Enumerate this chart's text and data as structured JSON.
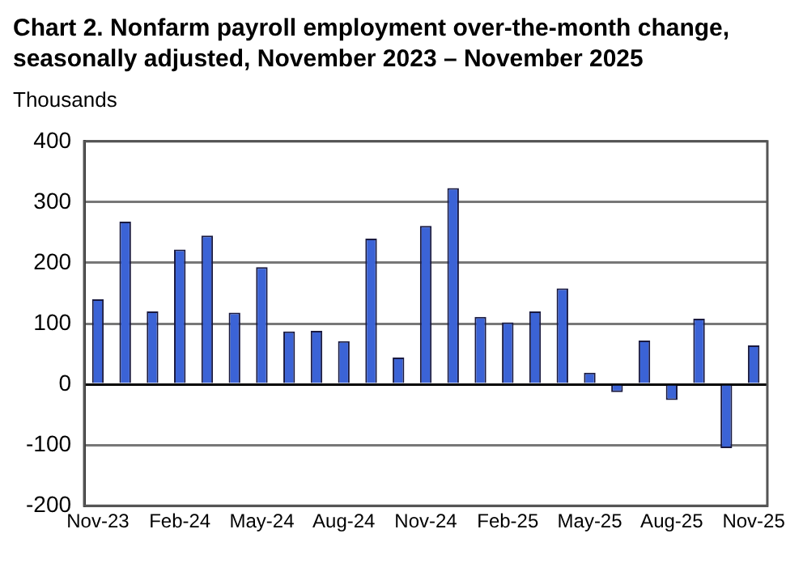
{
  "chart_data": {
    "type": "bar",
    "title": "Chart 2. Nonfarm payroll employment over-the-month change, seasonally adjusted, November 2023 – November 2025",
    "ylabel": "Thousands",
    "categories": [
      "Nov-23",
      null,
      null,
      "Feb-24",
      null,
      null,
      "May-24",
      null,
      null,
      "Aug-24",
      null,
      null,
      "Nov-24",
      null,
      null,
      "Feb-25",
      null,
      null,
      "May-25",
      null,
      null,
      "Aug-25",
      null,
      null,
      "Nov-25"
    ],
    "values": [
      140,
      268,
      120,
      222,
      245,
      118,
      193,
      87,
      88,
      71,
      240,
      44,
      261,
      323,
      111,
      102,
      120,
      158,
      19,
      -13,
      72,
      -26,
      108,
      -105,
      64
    ],
    "color": "#3b63d6",
    "ylim": [
      -200,
      400
    ],
    "yticks": [
      -200,
      -100,
      0,
      100,
      200,
      300,
      400
    ],
    "grid": "y",
    "legend": false
  }
}
